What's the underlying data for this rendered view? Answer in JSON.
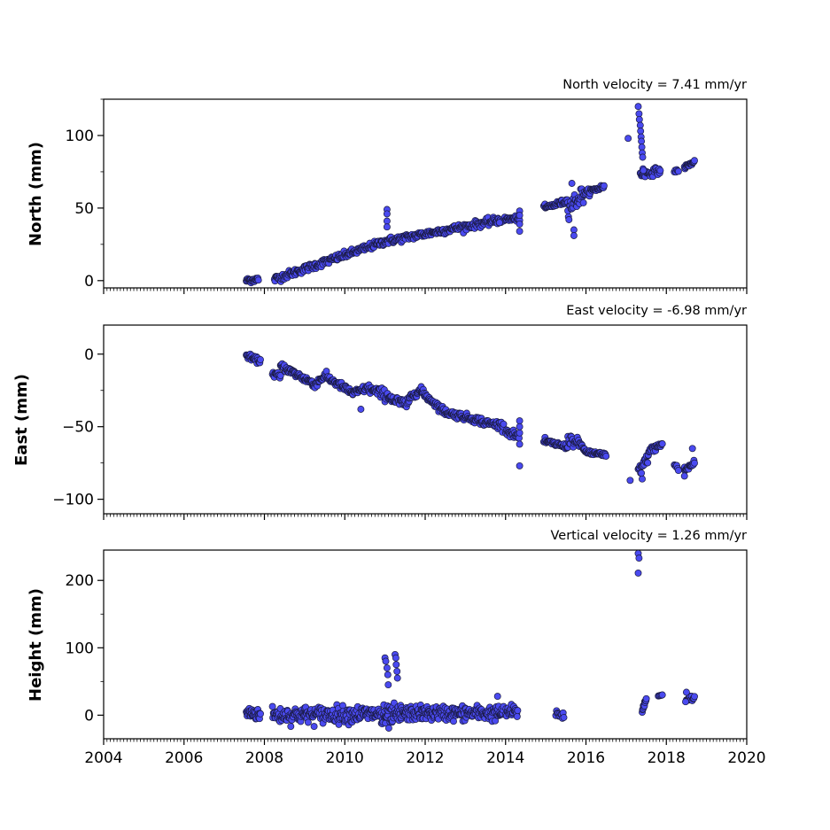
{
  "chart_data": [
    {
      "type": "scatter",
      "title": "North velocity = 7.41 mm/yr",
      "ylabel": "North (mm)",
      "xlabel": "",
      "xlim": [
        2004,
        2020
      ],
      "ylim": [
        -5,
        125
      ],
      "yticks": [
        0,
        50,
        100
      ],
      "xticks": [
        2004,
        2006,
        2008,
        2010,
        2012,
        2014,
        2016,
        2018,
        2020
      ],
      "xtick_labels_shown": false,
      "grid": false,
      "marker_color": "#4a4af0",
      "marker_edge_color": "#1a1a40",
      "segments": [
        {
          "t0": 2007.55,
          "t1": 2007.85,
          "y0": 0,
          "y1": 1,
          "noise": 1.5,
          "n": 26
        },
        {
          "t0": 2008.25,
          "t1": 2011.0,
          "y0": 1,
          "y1": 27,
          "noise": 2,
          "n": 190
        },
        {
          "t0": 2011.0,
          "t1": 2013.9,
          "y0": 27,
          "y1": 42,
          "noise": 2,
          "n": 200
        },
        {
          "t0": 2013.95,
          "t1": 2014.35,
          "y0": 42,
          "y1": 43,
          "noise": 1.5,
          "n": 28
        },
        {
          "t0": 2014.95,
          "t1": 2015.55,
          "y0": 50,
          "y1": 55,
          "noise": 1.5,
          "n": 42
        },
        {
          "t0": 2015.55,
          "t1": 2015.95,
          "y0": 50,
          "y1": 60,
          "noise": 5,
          "n": 30
        },
        {
          "t0": 2015.95,
          "t1": 2016.45,
          "y0": 60,
          "y1": 65,
          "noise": 1.5,
          "n": 34
        },
        {
          "t0": 2017.35,
          "t1": 2017.85,
          "y0": 73,
          "y1": 76,
          "noise": 2,
          "n": 34
        },
        {
          "t0": 2018.2,
          "t1": 2018.3,
          "y0": 75,
          "y1": 76,
          "noise": 1,
          "n": 6
        },
        {
          "t0": 2018.45,
          "t1": 2018.7,
          "y0": 78,
          "y1": 82,
          "noise": 1,
          "n": 20
        }
      ],
      "points": [
        [
          2011.05,
          49
        ],
        [
          2011.05,
          46
        ],
        [
          2011.05,
          41
        ],
        [
          2011.05,
          37
        ],
        [
          2013.85,
          40
        ],
        [
          2014.35,
          48
        ],
        [
          2014.35,
          45
        ],
        [
          2014.35,
          39
        ],
        [
          2014.35,
          34
        ],
        [
          2015.65,
          67
        ],
        [
          2015.7,
          35
        ],
        [
          2015.7,
          31
        ],
        [
          2017.05,
          98
        ],
        [
          2017.3,
          120
        ],
        [
          2017.32,
          115
        ],
        [
          2017.33,
          111
        ],
        [
          2017.35,
          107
        ],
        [
          2017.36,
          103
        ],
        [
          2017.37,
          99
        ],
        [
          2017.38,
          96
        ],
        [
          2017.39,
          92
        ],
        [
          2017.4,
          88
        ],
        [
          2017.41,
          85
        ],
        [
          2017.42,
          77
        ],
        [
          2017.43,
          76
        ]
      ]
    },
    {
      "type": "scatter",
      "title": "East velocity = -6.98 mm/yr",
      "ylabel": "East (mm)",
      "xlabel": "",
      "xlim": [
        2004,
        2020
      ],
      "ylim": [
        -110,
        20
      ],
      "yticks": [
        0,
        -50,
        -100
      ],
      "ytick_labels": [
        "0",
        "−50",
        "−100"
      ],
      "xticks": [
        2004,
        2006,
        2008,
        2010,
        2012,
        2014,
        2016,
        2018,
        2020
      ],
      "xtick_labels_shown": false,
      "grid": false,
      "marker_color": "#4a4af0",
      "marker_edge_color": "#1a1a40",
      "segments": [
        {
          "t0": 2007.55,
          "t1": 2007.9,
          "y0": -1,
          "y1": -5,
          "noise": 1.5,
          "n": 26
        },
        {
          "t0": 2008.2,
          "t1": 2008.4,
          "y0": -13,
          "y1": -16,
          "noise": 2,
          "n": 14
        },
        {
          "t0": 2008.4,
          "t1": 2009.2,
          "y0": -8,
          "y1": -20,
          "noise": 2,
          "n": 60
        },
        {
          "t0": 2009.2,
          "t1": 2009.5,
          "y0": -22,
          "y1": -15,
          "noise": 2,
          "n": 22
        },
        {
          "t0": 2009.5,
          "t1": 2010.2,
          "y0": -15,
          "y1": -27,
          "noise": 2,
          "n": 50
        },
        {
          "t0": 2010.2,
          "t1": 2010.6,
          "y0": -27,
          "y1": -23,
          "noise": 2,
          "n": 28
        },
        {
          "t0": 2010.6,
          "t1": 2011.2,
          "y0": -24,
          "y1": -30,
          "noise": 3,
          "n": 40
        },
        {
          "t0": 2011.2,
          "t1": 2011.6,
          "y0": -32,
          "y1": -35,
          "noise": 3,
          "n": 26
        },
        {
          "t0": 2011.6,
          "t1": 2011.9,
          "y0": -30,
          "y1": -24,
          "noise": 2,
          "n": 22
        },
        {
          "t0": 2011.9,
          "t1": 2012.5,
          "y0": -26,
          "y1": -40,
          "noise": 2,
          "n": 45
        },
        {
          "t0": 2012.5,
          "t1": 2013.4,
          "y0": -40,
          "y1": -46,
          "noise": 2,
          "n": 65
        },
        {
          "t0": 2013.4,
          "t1": 2013.95,
          "y0": -47,
          "y1": -49,
          "noise": 2,
          "n": 40
        },
        {
          "t0": 2014.0,
          "t1": 2014.35,
          "y0": -53,
          "y1": -57,
          "noise": 2,
          "n": 26
        },
        {
          "t0": 2014.95,
          "t1": 2015.55,
          "y0": -60,
          "y1": -64,
          "noise": 1.5,
          "n": 40
        },
        {
          "t0": 2015.55,
          "t1": 2015.95,
          "y0": -58,
          "y1": -64,
          "noise": 3,
          "n": 28
        },
        {
          "t0": 2015.95,
          "t1": 2016.5,
          "y0": -67,
          "y1": -70,
          "noise": 1.5,
          "n": 36
        },
        {
          "t0": 2017.3,
          "t1": 2017.55,
          "y0": -80,
          "y1": -72,
          "noise": 3,
          "n": 18
        },
        {
          "t0": 2017.55,
          "t1": 2017.9,
          "y0": -67,
          "y1": -62,
          "noise": 2,
          "n": 26
        },
        {
          "t0": 2018.2,
          "t1": 2018.3,
          "y0": -76,
          "y1": -79,
          "noise": 2,
          "n": 6
        },
        {
          "t0": 2018.45,
          "t1": 2018.7,
          "y0": -80,
          "y1": -75,
          "noise": 2,
          "n": 20
        }
      ],
      "points": [
        [
          2010.4,
          -38
        ],
        [
          2014.35,
          -46
        ],
        [
          2014.35,
          -50
        ],
        [
          2014.35,
          -62
        ],
        [
          2014.35,
          -77
        ],
        [
          2017.1,
          -87
        ],
        [
          2017.4,
          -86
        ],
        [
          2017.38,
          -82
        ],
        [
          2018.45,
          -84
        ],
        [
          2018.65,
          -65
        ]
      ]
    },
    {
      "type": "scatter",
      "title": "Vertical velocity = 1.26 mm/yr",
      "ylabel": "Height (mm)",
      "xlabel": "",
      "xlim": [
        2004,
        2020
      ],
      "ylim": [
        -35,
        245
      ],
      "yticks": [
        0,
        100,
        200
      ],
      "xticks": [
        2004,
        2006,
        2008,
        2010,
        2012,
        2014,
        2016,
        2018,
        2020
      ],
      "xtick_labels": [
        "2004",
        "2006",
        "2008",
        "2010",
        "2012",
        "2014",
        "2016",
        "2018",
        "2020"
      ],
      "xtick_labels_shown": true,
      "grid": false,
      "marker_color": "#4a4af0",
      "marker_edge_color": "#1a1a40",
      "segments": [
        {
          "t0": 2007.55,
          "t1": 2007.9,
          "y0": 4,
          "y1": 2,
          "noise": 8,
          "n": 34
        },
        {
          "t0": 2008.2,
          "t1": 2010.9,
          "y0": 0,
          "y1": 2,
          "noise": 10,
          "n": 220
        },
        {
          "t0": 2010.9,
          "t1": 2011.4,
          "y0": -5,
          "y1": 0,
          "noise": 14,
          "n": 50
        },
        {
          "t0": 2011.4,
          "t1": 2013.95,
          "y0": 3,
          "y1": 3,
          "noise": 9,
          "n": 210
        },
        {
          "t0": 2014.0,
          "t1": 2014.3,
          "y0": 5,
          "y1": 5,
          "noise": 8,
          "n": 26
        },
        {
          "t0": 2015.25,
          "t1": 2015.45,
          "y0": 2,
          "y1": 0,
          "noise": 5,
          "n": 12
        },
        {
          "t0": 2017.4,
          "t1": 2017.5,
          "y0": 5,
          "y1": 25,
          "noise": 6,
          "n": 12
        },
        {
          "t0": 2017.8,
          "t1": 2017.9,
          "y0": 29,
          "y1": 30,
          "noise": 1,
          "n": 5
        },
        {
          "t0": 2018.5,
          "t1": 2018.7,
          "y0": 25,
          "y1": 25,
          "noise": 4,
          "n": 12
        }
      ],
      "points": [
        [
          2011.0,
          85
        ],
        [
          2011.02,
          80
        ],
        [
          2011.05,
          70
        ],
        [
          2011.07,
          60
        ],
        [
          2011.08,
          45
        ],
        [
          2011.25,
          90
        ],
        [
          2011.27,
          85
        ],
        [
          2011.28,
          75
        ],
        [
          2011.3,
          65
        ],
        [
          2011.31,
          55
        ],
        [
          2013.8,
          28
        ],
        [
          2017.3,
          240
        ],
        [
          2017.32,
          233
        ],
        [
          2017.3,
          211
        ],
        [
          2018.5,
          34
        ],
        [
          2018.48,
          20
        ]
      ]
    }
  ]
}
